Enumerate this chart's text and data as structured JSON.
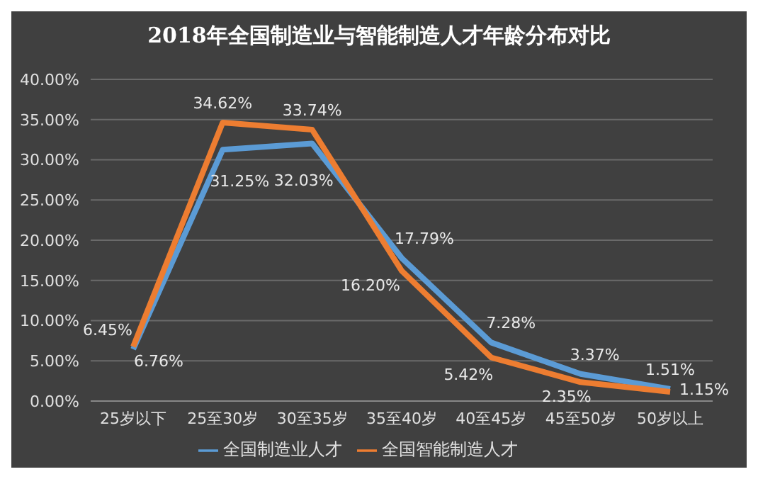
{
  "chart_data": {
    "type": "line",
    "title": "2018年全国制造业与智能制造人才年龄分布对比",
    "categories": [
      "25岁以下",
      "25至30岁",
      "30至35岁",
      "35至40岁",
      "40至45岁",
      "45至50岁",
      "50岁以上"
    ],
    "series": [
      {
        "name": "全国制造业人才",
        "color": "#5b9bd5",
        "values": [
          6.45,
          31.25,
          32.03,
          17.79,
          7.28,
          3.37,
          1.51
        ],
        "value_labels": [
          "6.45%",
          "31.25%",
          "32.03%",
          "17.79%",
          "7.28%",
          "3.37%",
          "1.51%"
        ]
      },
      {
        "name": "全国智能制造人才",
        "color": "#ed7d31",
        "values": [
          6.76,
          34.62,
          33.74,
          16.2,
          5.42,
          2.35,
          1.15
        ],
        "value_labels": [
          "6.76%",
          "34.62%",
          "33.74%",
          "16.20%",
          "5.42%",
          "2.35%",
          "1.15%"
        ]
      }
    ],
    "ylim": [
      0,
      40
    ],
    "yticks": [
      {
        "value": 0,
        "label": "0.00%"
      },
      {
        "value": 5,
        "label": "5.00%"
      },
      {
        "value": 10,
        "label": "10.00%"
      },
      {
        "value": 15,
        "label": "15.00%"
      },
      {
        "value": 20,
        "label": "20.00%"
      },
      {
        "value": 25,
        "label": "25.00%"
      },
      {
        "value": 30,
        "label": "30.00%"
      },
      {
        "value": 35,
        "label": "35.00%"
      },
      {
        "value": 40,
        "label": "40.00%"
      }
    ],
    "grid": "y",
    "legend": "bottom",
    "marker": "none",
    "line_style": "solid"
  }
}
